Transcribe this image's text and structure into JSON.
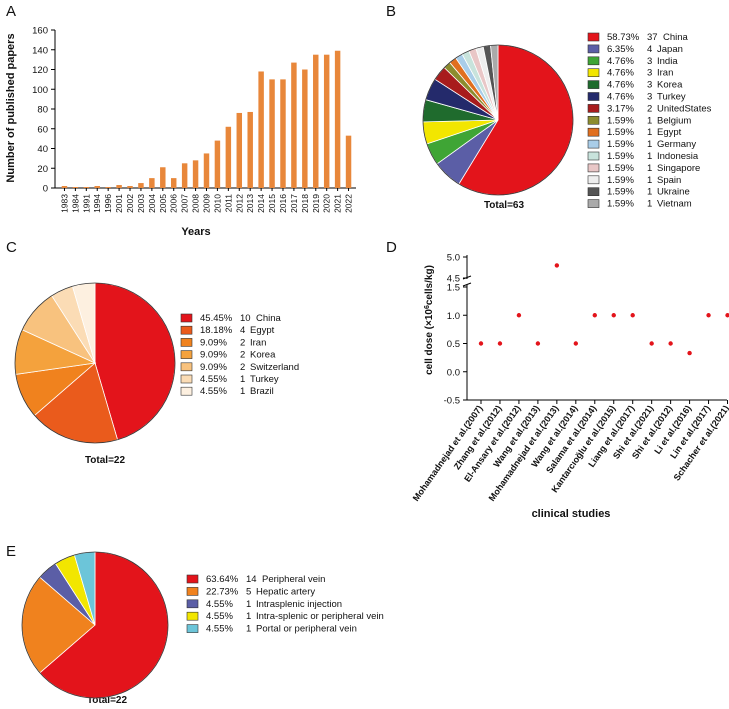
{
  "panels": {
    "A": "A",
    "B": "B",
    "C": "C",
    "D": "D",
    "E": "E"
  },
  "chart_data": [
    {
      "id": "A",
      "type": "bar",
      "title": "",
      "xlabel": "Years",
      "ylabel": "Number of published papers",
      "ylim": [
        0,
        160
      ],
      "yticks": [
        0,
        20,
        40,
        60,
        80,
        100,
        120,
        140,
        160
      ],
      "color": "#e8873a",
      "categories": [
        "1983",
        "1984",
        "1991",
        "1994",
        "1996",
        "2001",
        "2002",
        "2003",
        "2004",
        "2005",
        "2006",
        "2007",
        "2008",
        "2009",
        "2010",
        "2011",
        "2012",
        "2013",
        "2014",
        "2015",
        "2016",
        "2017",
        "2018",
        "2019",
        "2020",
        "2021",
        "2022"
      ],
      "values": [
        2,
        1,
        1,
        2,
        1,
        3,
        2,
        5,
        10,
        21,
        10,
        25,
        28,
        35,
        48,
        62,
        76,
        77,
        118,
        110,
        110,
        127,
        120,
        135,
        135,
        139,
        53
      ]
    },
    {
      "id": "B",
      "type": "pie",
      "total_label": "Total=63",
      "slices": [
        {
          "pct": "58.73%",
          "count": "37",
          "label": "China",
          "value": 37,
          "color": "#e3141b"
        },
        {
          "pct": "6.35%",
          "count": "4",
          "label": "Japan",
          "value": 4,
          "color": "#5b5ea6"
        },
        {
          "pct": "4.76%",
          "count": "3",
          "label": "India",
          "value": 3,
          "color": "#3fa535"
        },
        {
          "pct": "4.76%",
          "count": "3",
          "label": "Iran",
          "value": 3,
          "color": "#f2e600"
        },
        {
          "pct": "4.76%",
          "count": "3",
          "label": "Korea",
          "value": 3,
          "color": "#1f6b2d"
        },
        {
          "pct": "4.76%",
          "count": "3",
          "label": "Turkey",
          "value": 3,
          "color": "#242a6b"
        },
        {
          "pct": "3.17%",
          "count": "2",
          "label": "UnitedStates",
          "value": 2,
          "color": "#a81c1c"
        },
        {
          "pct": "1.59%",
          "count": "1",
          "label": "Belgium",
          "value": 1,
          "color": "#8c8c2e"
        },
        {
          "pct": "1.59%",
          "count": "1",
          "label": "Egypt",
          "value": 1,
          "color": "#e06f1f"
        },
        {
          "pct": "1.59%",
          "count": "1",
          "label": "Germany",
          "value": 1,
          "color": "#a9cde8"
        },
        {
          "pct": "1.59%",
          "count": "1",
          "label": "Indonesia",
          "value": 1,
          "color": "#c8e3dc"
        },
        {
          "pct": "1.59%",
          "count": "1",
          "label": "Singapore",
          "value": 1,
          "color": "#e9c7c7"
        },
        {
          "pct": "1.59%",
          "count": "1",
          "label": "Spain",
          "value": 1,
          "color": "#eeeeee"
        },
        {
          "pct": "1.59%",
          "count": "1",
          "label": "Ukraine",
          "value": 1,
          "color": "#555555"
        },
        {
          "pct": "1.59%",
          "count": "1",
          "label": "Vietnam",
          "value": 1,
          "color": "#aaaaaa"
        }
      ]
    },
    {
      "id": "C",
      "type": "pie",
      "total_label": "Total=22",
      "slices": [
        {
          "pct": "45.45%",
          "count": "10",
          "label": "China",
          "value": 10,
          "color": "#e3141b"
        },
        {
          "pct": "18.18%",
          "count": "4",
          "label": "Egypt",
          "value": 4,
          "color": "#ea5b1c"
        },
        {
          "pct": "9.09%",
          "count": "2",
          "label": "Iran",
          "value": 2,
          "color": "#f0821e"
        },
        {
          "pct": "9.09%",
          "count": "2",
          "label": "Korea",
          "value": 2,
          "color": "#f4a23d"
        },
        {
          "pct": "9.09%",
          "count": "2",
          "label": "Switzerland",
          "value": 2,
          "color": "#f8c27e"
        },
        {
          "pct": "4.55%",
          "count": "1",
          "label": "Turkey",
          "value": 1,
          "color": "#fbdcb5"
        },
        {
          "pct": "4.55%",
          "count": "1",
          "label": "Brazil",
          "value": 1,
          "color": "#fdf0e0"
        }
      ]
    },
    {
      "id": "D",
      "type": "scatter",
      "xlabel": "clinical studies",
      "ylabel": "cell dose (×10⁶cells/kg)",
      "ylabel_parts": {
        "pre": "cell dose (×10",
        "sup": "6",
        "post": "cells/kg)"
      },
      "yticks_lower": [
        "-0.5",
        "0.0",
        "0.5",
        "1.0",
        "1.5"
      ],
      "yticks_upper": [
        "4.5",
        "5.0"
      ],
      "ylim_lower": [
        -0.5,
        1.5
      ],
      "ylim_upper": [
        4.5,
        5.0
      ],
      "color": "#e3141b",
      "categories": [
        "Mohamadnejad et al.(2007)",
        "Zhang et al.(2012)",
        "El-Ansary et al.(2012)",
        "Wang et al.(2013)",
        "Mohamadnejad et al.(2013)",
        "Wang et al.(2014)",
        "Salama et al.(2014)",
        "Kantarcıoğlu et al.(2015)",
        "Liang et al.(2017)",
        "Shi et al.(2021)",
        "Shi et al.(2012)",
        "Li et al.(2016)",
        "Lin et al.(2017)",
        "Schacher et al.(2021)"
      ],
      "values": [
        0.5,
        0.5,
        1.0,
        0.5,
        4.8,
        0.5,
        1.0,
        1.0,
        1.0,
        0.5,
        0.5,
        0.33,
        1.0,
        1.0
      ]
    },
    {
      "id": "E",
      "type": "pie",
      "total_label": "Total=22",
      "slices": [
        {
          "pct": "63.64%",
          "count": "14",
          "label": "Peripheral vein",
          "value": 14,
          "color": "#e3141b"
        },
        {
          "pct": "22.73%",
          "count": "5",
          "label": "Hepatic artery",
          "value": 5,
          "color": "#f0821e"
        },
        {
          "pct": "4.55%",
          "count": "1",
          "label": "Intrasplenic injection",
          "value": 1,
          "color": "#5b5ea6"
        },
        {
          "pct": "4.55%",
          "count": "1",
          "label": "Intra-splenic or peripheral vein",
          "value": 1,
          "color": "#f2e600"
        },
        {
          "pct": "4.55%",
          "count": "1",
          "label": "Portal or peripheral vein",
          "value": 1,
          "color": "#6cc5d9"
        }
      ]
    }
  ]
}
